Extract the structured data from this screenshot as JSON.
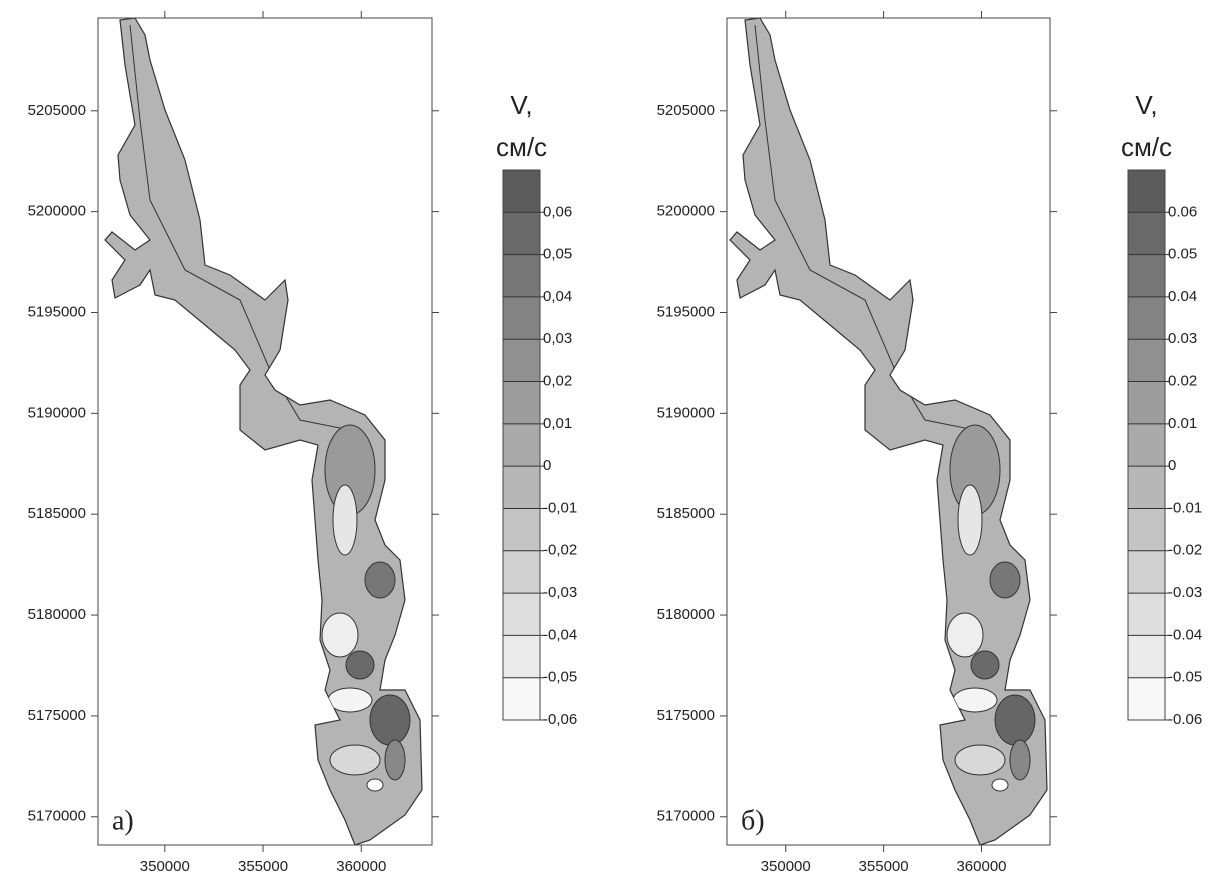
{
  "chart_data": [
    {
      "type": "contour",
      "label": "а)",
      "xlim": [
        346600,
        363600
      ],
      "ylim": [
        5168600,
        5209600
      ],
      "xticks": [
        350000,
        355000,
        360000
      ],
      "yticks": [
        5170000,
        5175000,
        5180000,
        5185000,
        5190000,
        5195000,
        5200000,
        5205000
      ],
      "colorbar": {
        "title": [
          "V,",
          "см/с"
        ],
        "lim": [
          -0.06,
          0.07
        ],
        "colors": [
          "#ffffff",
          "#555555"
        ],
        "ticks": [
          {
            "value": -0.06,
            "label": "-0,06"
          },
          {
            "value": -0.05,
            "label": "-0,05"
          },
          {
            "value": -0.04,
            "label": "-0,04"
          },
          {
            "value": -0.03,
            "label": "-0,03"
          },
          {
            "value": -0.02,
            "label": "-0,02"
          },
          {
            "value": -0.01,
            "label": "-0,01"
          },
          0,
          {
            "value": 0.01,
            "label": "0,01"
          },
          {
            "value": 0.02,
            "label": "0,02"
          },
          {
            "value": 0.03,
            "label": "0,03"
          },
          {
            "value": 0.04,
            "label": "0,04"
          },
          {
            "value": 0.05,
            "label": "0,05"
          },
          {
            "value": 0.06,
            "label": "0,06"
          }
        ]
      }
    },
    {
      "type": "contour",
      "label": "б)",
      "xlim": [
        347000,
        363500
      ],
      "ylim": [
        5168600,
        5209600
      ],
      "xticks": [
        350000,
        355000,
        360000
      ],
      "yticks": [
        5170000,
        5175000,
        5180000,
        5185000,
        5190000,
        5195000,
        5200000,
        5205000
      ],
      "colorbar": {
        "title": [
          "V,",
          "см/с"
        ],
        "lim": [
          -0.06,
          0.07
        ],
        "colors": [
          "#ffffff",
          "#555555"
        ],
        "ticks": [
          -0.06,
          -0.05,
          -0.04,
          -0.03,
          -0.02,
          -0.01,
          0,
          0.01,
          0.02,
          0.03,
          0.04,
          0.05,
          0.06
        ]
      }
    }
  ]
}
